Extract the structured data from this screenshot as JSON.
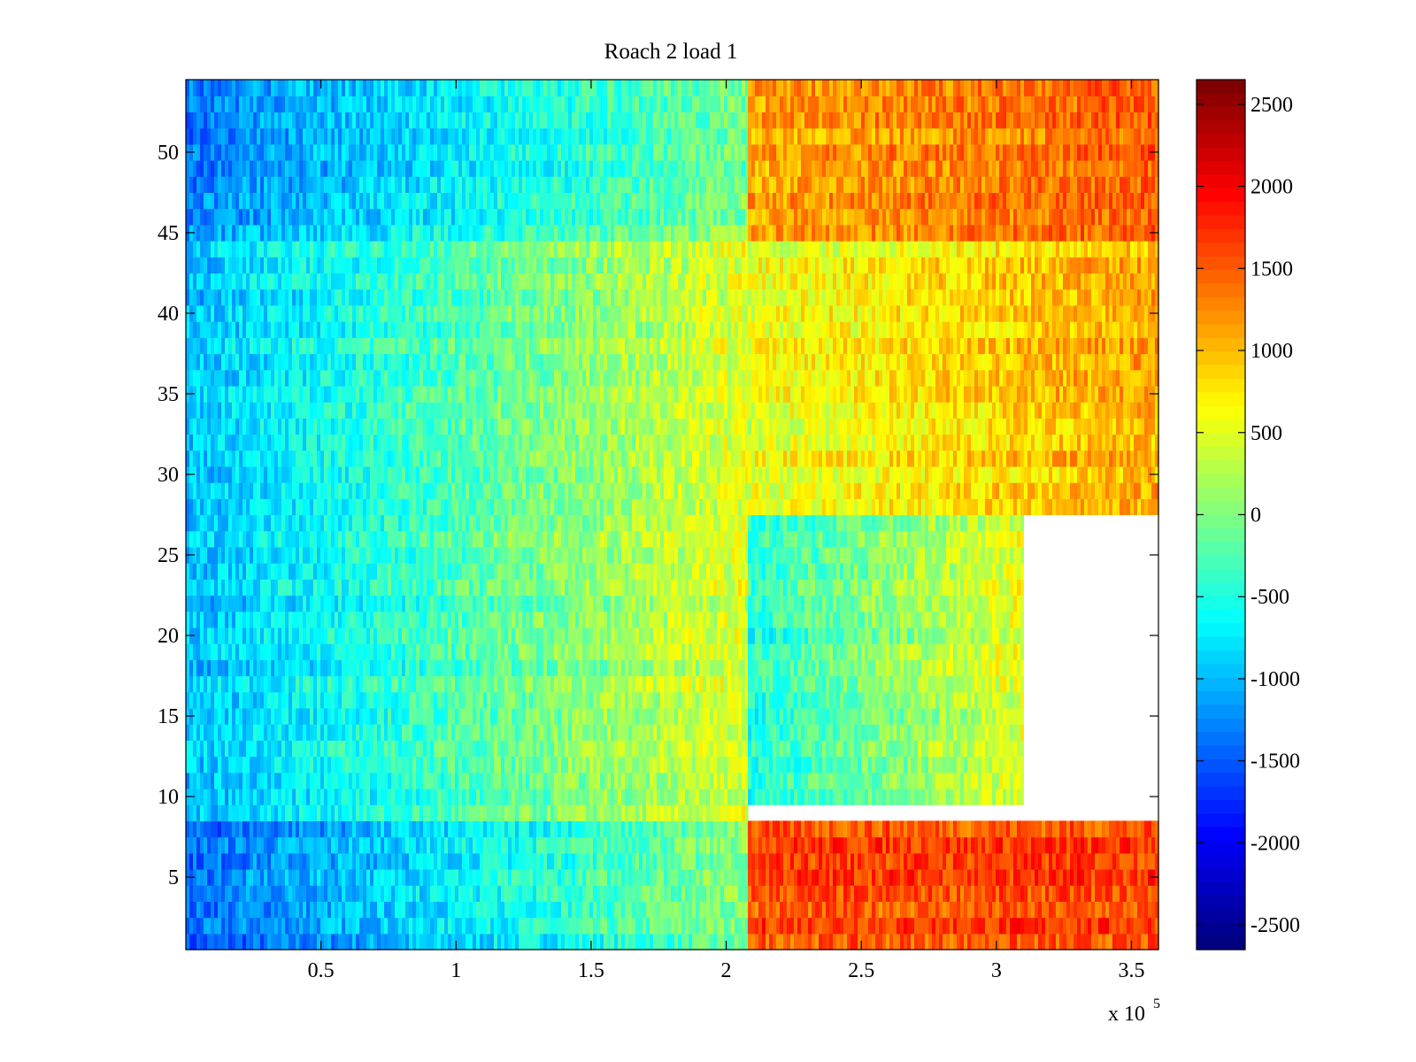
{
  "chart_data": {
    "type": "heatmap",
    "title": "Roach 2 load 1",
    "xlabel": "",
    "ylabel": "",
    "x_exponent_label": {
      "base": "x 10",
      "power": "5"
    },
    "xlim": [
      0,
      3.6
    ],
    "ylim": [
      0.5,
      54.5
    ],
    "x_ticks": [
      {
        "value": 0.5,
        "label": "0.5"
      },
      {
        "value": 1,
        "label": "1"
      },
      {
        "value": 1.5,
        "label": "1.5"
      },
      {
        "value": 2,
        "label": "2"
      },
      {
        "value": 2.5,
        "label": "2.5"
      },
      {
        "value": 3,
        "label": "3"
      },
      {
        "value": 3.5,
        "label": "3.5"
      }
    ],
    "y_ticks": [
      {
        "value": 5,
        "label": "5"
      },
      {
        "value": 10,
        "label": "10"
      },
      {
        "value": 15,
        "label": "15"
      },
      {
        "value": 20,
        "label": "20"
      },
      {
        "value": 25,
        "label": "25"
      },
      {
        "value": 30,
        "label": "30"
      },
      {
        "value": 35,
        "label": "35"
      },
      {
        "value": 40,
        "label": "40"
      },
      {
        "value": 45,
        "label": "45"
      },
      {
        "value": 50,
        "label": "50"
      }
    ],
    "colorbar": {
      "colormap": "jet",
      "range": [
        -2650,
        2650
      ],
      "ticks": [
        {
          "value": 2500,
          "label": "2500"
        },
        {
          "value": 2000,
          "label": "2000"
        },
        {
          "value": 1500,
          "label": "1500"
        },
        {
          "value": 1000,
          "label": "1000"
        },
        {
          "value": 500,
          "label": "500"
        },
        {
          "value": 0,
          "label": "0"
        },
        {
          "value": -500,
          "label": "-500"
        },
        {
          "value": -1000,
          "label": "-1000"
        },
        {
          "value": -1500,
          "label": "-1500"
        },
        {
          "value": -2000,
          "label": "-2000"
        },
        {
          "value": -2500,
          "label": "-2500"
        }
      ]
    },
    "regions": [
      {
        "rows": [
          1,
          8
        ],
        "x_range": [
          0,
          2.08
        ],
        "value_start": -1500,
        "value_end": 0
      },
      {
        "rows": [
          1,
          8
        ],
        "x_range": [
          2.08,
          3.6
        ],
        "value_start": 1600,
        "value_end": 1600
      },
      {
        "rows": [
          9,
          44
        ],
        "x_range": [
          0,
          2.08
        ],
        "value_start": -1000,
        "value_end": 500
      },
      {
        "rows": [
          10,
          27
        ],
        "x_range": [
          2.08,
          3.1
        ],
        "value_start": -500,
        "value_end": 500
      },
      {
        "rows": [
          28,
          44
        ],
        "x_range": [
          2.08,
          3.6
        ],
        "value_start": 500,
        "value_end": 1100
      },
      {
        "rows": [
          45,
          54
        ],
        "x_range": [
          0,
          2.08
        ],
        "value_start": -1300,
        "value_end": 0
      },
      {
        "rows": [
          45,
          54
        ],
        "x_range": [
          2.08,
          3.6
        ],
        "value_start": 1100,
        "value_end": 1500
      }
    ],
    "n_rows": 54
  }
}
